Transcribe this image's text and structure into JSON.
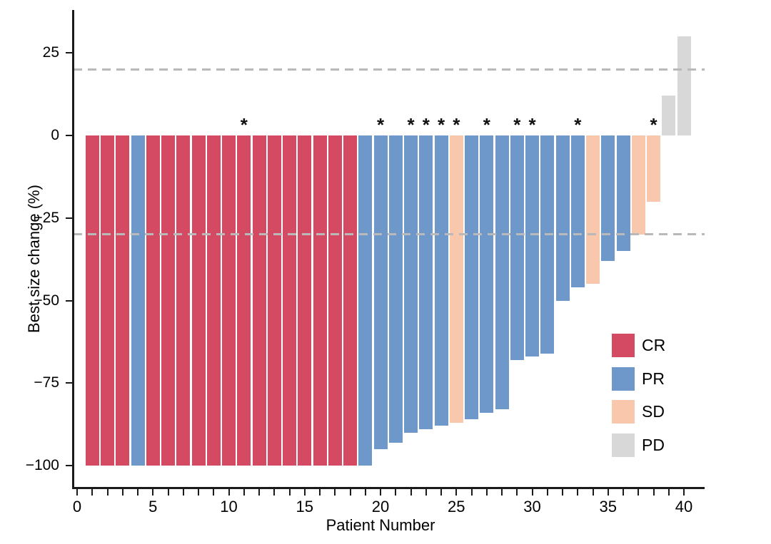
{
  "chart_data": {
    "type": "bar",
    "title": "",
    "xlabel": "Patient Number",
    "ylabel": "Best size change (%)",
    "x_axis": {
      "min": 0,
      "max": 40,
      "minor_tick_step": 1,
      "labeled_ticks": [
        0,
        5,
        10,
        15,
        20,
        25,
        30,
        35,
        40
      ]
    },
    "y_axis": {
      "ticks": [
        {
          "value": 25,
          "label": "25"
        },
        {
          "value": 0,
          "label": "0"
        },
        {
          "value": -25,
          "label": "−25"
        },
        {
          "value": -50,
          "label": "−50"
        },
        {
          "value": -75,
          "label": "−75"
        },
        {
          "value": -100,
          "label": "−100"
        }
      ],
      "range_shown": [
        -100,
        30
      ]
    },
    "reference_lines": [
      20,
      -30
    ],
    "reference_line_color": "#b9b9b9",
    "colors": {
      "CR": "#d54a63",
      "PR": "#6d98c9",
      "SD": "#f8c7ac",
      "PD": "#d8d8d8"
    },
    "legend": [
      {
        "key": "CR",
        "label": "CR"
      },
      {
        "key": "PR",
        "label": "PR"
      },
      {
        "key": "SD",
        "label": "SD"
      },
      {
        "key": "PD",
        "label": "PD"
      }
    ],
    "annotation_symbol": "*",
    "patients": [
      {
        "id": 1,
        "value": -100,
        "response": "CR",
        "asterisk": false
      },
      {
        "id": 2,
        "value": -100,
        "response": "CR",
        "asterisk": false
      },
      {
        "id": 3,
        "value": -100,
        "response": "CR",
        "asterisk": false
      },
      {
        "id": 4,
        "value": -100,
        "response": "PR",
        "asterisk": false
      },
      {
        "id": 5,
        "value": -100,
        "response": "CR",
        "asterisk": false
      },
      {
        "id": 6,
        "value": -100,
        "response": "CR",
        "asterisk": false
      },
      {
        "id": 7,
        "value": -100,
        "response": "CR",
        "asterisk": false
      },
      {
        "id": 8,
        "value": -100,
        "response": "CR",
        "asterisk": false
      },
      {
        "id": 9,
        "value": -100,
        "response": "CR",
        "asterisk": false
      },
      {
        "id": 10,
        "value": -100,
        "response": "CR",
        "asterisk": false
      },
      {
        "id": 11,
        "value": -100,
        "response": "CR",
        "asterisk": true
      },
      {
        "id": 12,
        "value": -100,
        "response": "CR",
        "asterisk": false
      },
      {
        "id": 13,
        "value": -100,
        "response": "CR",
        "asterisk": false
      },
      {
        "id": 14,
        "value": -100,
        "response": "CR",
        "asterisk": false
      },
      {
        "id": 15,
        "value": -100,
        "response": "CR",
        "asterisk": false
      },
      {
        "id": 16,
        "value": -100,
        "response": "CR",
        "asterisk": false
      },
      {
        "id": 17,
        "value": -100,
        "response": "CR",
        "asterisk": false
      },
      {
        "id": 18,
        "value": -100,
        "response": "CR",
        "asterisk": false
      },
      {
        "id": 19,
        "value": -100,
        "response": "PR",
        "asterisk": false
      },
      {
        "id": 20,
        "value": -95,
        "response": "PR",
        "asterisk": true
      },
      {
        "id": 21,
        "value": -93,
        "response": "PR",
        "asterisk": false
      },
      {
        "id": 22,
        "value": -90,
        "response": "PR",
        "asterisk": true
      },
      {
        "id": 23,
        "value": -89,
        "response": "PR",
        "asterisk": true
      },
      {
        "id": 24,
        "value": -88,
        "response": "PR",
        "asterisk": true
      },
      {
        "id": 25,
        "value": -87,
        "response": "SD",
        "asterisk": true
      },
      {
        "id": 26,
        "value": -86,
        "response": "PR",
        "asterisk": false
      },
      {
        "id": 27,
        "value": -84,
        "response": "PR",
        "asterisk": true
      },
      {
        "id": 28,
        "value": -83,
        "response": "PR",
        "asterisk": false
      },
      {
        "id": 29,
        "value": -68,
        "response": "PR",
        "asterisk": true
      },
      {
        "id": 30,
        "value": -67,
        "response": "PR",
        "asterisk": true
      },
      {
        "id": 31,
        "value": -66,
        "response": "PR",
        "asterisk": false
      },
      {
        "id": 32,
        "value": -50,
        "response": "PR",
        "asterisk": false
      },
      {
        "id": 33,
        "value": -46,
        "response": "PR",
        "asterisk": true
      },
      {
        "id": 34,
        "value": -45,
        "response": "SD",
        "asterisk": false
      },
      {
        "id": 35,
        "value": -38,
        "response": "PR",
        "asterisk": false
      },
      {
        "id": 36,
        "value": -35,
        "response": "PR",
        "asterisk": false
      },
      {
        "id": 37,
        "value": -30,
        "response": "SD",
        "asterisk": false
      },
      {
        "id": 38,
        "value": -20,
        "response": "SD",
        "asterisk": true
      },
      {
        "id": 39,
        "value": 12,
        "response": "PD",
        "asterisk": false
      },
      {
        "id": 40,
        "value": 30,
        "response": "PD",
        "asterisk": false
      }
    ]
  }
}
